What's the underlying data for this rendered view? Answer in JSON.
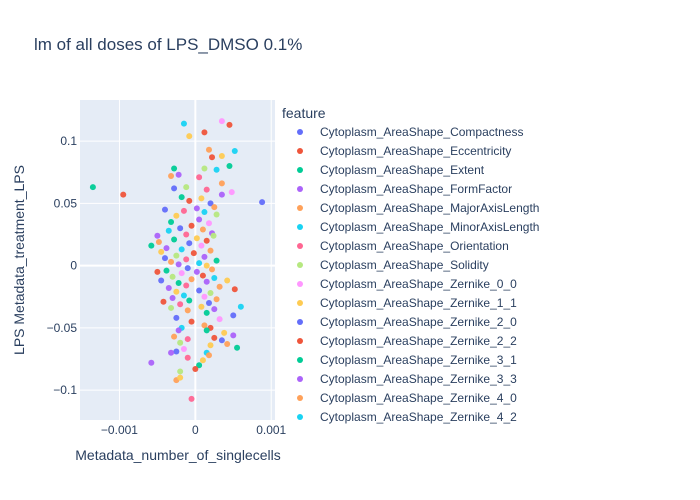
{
  "chart_data": {
    "type": "scatter",
    "title": "lm of all doses of LPS_DMSO 0.1%",
    "xlabel": "Metadata_number_of_singlecells",
    "ylabel": "LPS Metadata_treatment_LPS",
    "xlim": [
      -0.00152,
      0.00105
    ],
    "ylim": [
      -0.124,
      0.133
    ],
    "x_ticks": [
      {
        "value": -0.001,
        "label": "−0.001"
      },
      {
        "value": 0,
        "label": "0"
      },
      {
        "value": 0.001,
        "label": "0.001"
      }
    ],
    "y_ticks": [
      {
        "value": -0.1,
        "label": "−0.1"
      },
      {
        "value": -0.05,
        "label": "−0.05"
      },
      {
        "value": 0,
        "label": "0"
      },
      {
        "value": 0.05,
        "label": "0.05"
      },
      {
        "value": 0.1,
        "label": "0.1"
      }
    ],
    "grid": true,
    "legend": {
      "title": "feature",
      "placement": "right",
      "entries": [
        {
          "name": "Cytoplasm_AreaShape_Compactness",
          "color": "#636efa"
        },
        {
          "name": "Cytoplasm_AreaShape_Eccentricity",
          "color": "#EF553B"
        },
        {
          "name": "Cytoplasm_AreaShape_Extent",
          "color": "#00cc96"
        },
        {
          "name": "Cytoplasm_AreaShape_FormFactor",
          "color": "#ab63fa"
        },
        {
          "name": "Cytoplasm_AreaShape_MajorAxisLength",
          "color": "#FFA15A"
        },
        {
          "name": "Cytoplasm_AreaShape_MinorAxisLength",
          "color": "#19d3f3"
        },
        {
          "name": "Cytoplasm_AreaShape_Orientation",
          "color": "#FF6692"
        },
        {
          "name": "Cytoplasm_AreaShape_Solidity",
          "color": "#B6E880"
        },
        {
          "name": "Cytoplasm_AreaShape_Zernike_0_0",
          "color": "#FF97FF"
        },
        {
          "name": "Cytoplasm_AreaShape_Zernike_1_1",
          "color": "#FECB52"
        },
        {
          "name": "Cytoplasm_AreaShape_Zernike_2_0",
          "color": "#636efa"
        },
        {
          "name": "Cytoplasm_AreaShape_Zernike_2_2",
          "color": "#EF553B"
        },
        {
          "name": "Cytoplasm_AreaShape_Zernike_3_1",
          "color": "#00cc96"
        },
        {
          "name": "Cytoplasm_AreaShape_Zernike_3_3",
          "color": "#ab63fa"
        },
        {
          "name": "Cytoplasm_AreaShape_Zernike_4_0",
          "color": "#FFA15A"
        },
        {
          "name": "Cytoplasm_AreaShape_Zernike_4_2",
          "color": "#19d3f3"
        }
      ]
    },
    "points": [
      {
        "x": -0.00135,
        "y": 0.063,
        "c": "#00cc96"
      },
      {
        "x": -0.00095,
        "y": 0.057,
        "c": "#EF553B"
      },
      {
        "x": 0.00088,
        "y": 0.051,
        "c": "#636efa"
      },
      {
        "x": -0.00015,
        "y": 0.114,
        "c": "#19d3f3"
      },
      {
        "x": -8e-05,
        "y": 0.104,
        "c": "#FECB52"
      },
      {
        "x": 0.00012,
        "y": 0.107,
        "c": "#EF553B"
      },
      {
        "x": 0.00035,
        "y": 0.116,
        "c": "#FF97FF"
      },
      {
        "x": 0.00045,
        "y": 0.113,
        "c": "#EF553B"
      },
      {
        "x": 0.00018,
        "y": 0.093,
        "c": "#FFA15A"
      },
      {
        "x": 0.00052,
        "y": 0.092,
        "c": "#19d3f3"
      },
      {
        "x": 0.00035,
        "y": 0.088,
        "c": "#FECB52"
      },
      {
        "x": 0.00022,
        "y": 0.087,
        "c": "#EF553B"
      },
      {
        "x": 0.00045,
        "y": 0.08,
        "c": "#00cc96"
      },
      {
        "x": -0.00028,
        "y": 0.078,
        "c": "#00cc96"
      },
      {
        "x": 0.00012,
        "y": 0.078,
        "c": "#B6E880"
      },
      {
        "x": 0.00028,
        "y": 0.077,
        "c": "#19d3f3"
      },
      {
        "x": -0.00032,
        "y": 0.072,
        "c": "#FFA15A"
      },
      {
        "x": -0.00022,
        "y": 0.073,
        "c": "#ab63fa"
      },
      {
        "x": 5e-05,
        "y": 0.071,
        "c": "#FF6692"
      },
      {
        "x": 0.00035,
        "y": 0.066,
        "c": "#FFA15A"
      },
      {
        "x": -0.00012,
        "y": 0.063,
        "c": "#B6E880"
      },
      {
        "x": -0.00028,
        "y": 0.062,
        "c": "#636efa"
      },
      {
        "x": 0.00015,
        "y": 0.061,
        "c": "#FF6692"
      },
      {
        "x": 0.00048,
        "y": 0.059,
        "c": "#FF97FF"
      },
      {
        "x": 0.00035,
        "y": 0.057,
        "c": "#ab63fa"
      },
      {
        "x": -0.00018,
        "y": 0.055,
        "c": "#00cc96"
      },
      {
        "x": 8e-05,
        "y": 0.054,
        "c": "#FECB52"
      },
      {
        "x": -8e-05,
        "y": 0.052,
        "c": "#EF553B"
      },
      {
        "x": 0.0002,
        "y": 0.05,
        "c": "#636efa"
      },
      {
        "x": -0.0004,
        "y": 0.045,
        "c": "#636efa"
      },
      {
        "x": 0.00025,
        "y": 0.047,
        "c": "#FFA15A"
      },
      {
        "x": 2e-05,
        "y": 0.046,
        "c": "#ab63fa"
      },
      {
        "x": -0.00015,
        "y": 0.044,
        "c": "#FF6692"
      },
      {
        "x": 0.00012,
        "y": 0.043,
        "c": "#19d3f3"
      },
      {
        "x": -0.00025,
        "y": 0.04,
        "c": "#FECB52"
      },
      {
        "x": 0.00028,
        "y": 0.041,
        "c": "#B6E880"
      },
      {
        "x": 5e-05,
        "y": 0.037,
        "c": "#ab63fa"
      },
      {
        "x": -0.00032,
        "y": 0.035,
        "c": "#00cc96"
      },
      {
        "x": 0.00018,
        "y": 0.034,
        "c": "#FF97FF"
      },
      {
        "x": -5e-05,
        "y": 0.032,
        "c": "#EF553B"
      },
      {
        "x": -0.0002,
        "y": 0.03,
        "c": "#636efa"
      },
      {
        "x": 0.0001,
        "y": 0.029,
        "c": "#FFA15A"
      },
      {
        "x": -0.00035,
        "y": 0.028,
        "c": "#19d3f3"
      },
      {
        "x": 0.00022,
        "y": 0.026,
        "c": "#ab63fa"
      },
      {
        "x": -0.00012,
        "y": 0.025,
        "c": "#FF6692"
      },
      {
        "x": -0.0005,
        "y": 0.024,
        "c": "#ab63fa"
      },
      {
        "x": 0.00024,
        "y": 0.024,
        "c": "#B6E880"
      },
      {
        "x": 2e-05,
        "y": 0.022,
        "c": "#FECB52"
      },
      {
        "x": -0.00028,
        "y": 0.021,
        "c": "#00cc96"
      },
      {
        "x": 0.00015,
        "y": 0.02,
        "c": "#EF553B"
      },
      {
        "x": -0.00048,
        "y": 0.019,
        "c": "#FFA15A"
      },
      {
        "x": -8e-05,
        "y": 0.018,
        "c": "#636efa"
      },
      {
        "x": -0.00058,
        "y": 0.016,
        "c": "#00cc96"
      },
      {
        "x": 8e-05,
        "y": 0.016,
        "c": "#FF97FF"
      },
      {
        "x": -0.00038,
        "y": 0.014,
        "c": "#ab63fa"
      },
      {
        "x": -0.00018,
        "y": 0.013,
        "c": "#19d3f3"
      },
      {
        "x": 0.0002,
        "y": 0.012,
        "c": "#FFA15A"
      },
      {
        "x": -0.00045,
        "y": 0.011,
        "c": "#FECB52"
      },
      {
        "x": -2e-05,
        "y": 0.01,
        "c": "#EF553B"
      },
      {
        "x": -0.00025,
        "y": 0.008,
        "c": "#B6E880"
      },
      {
        "x": 0.00012,
        "y": 0.007,
        "c": "#ab63fa"
      },
      {
        "x": -0.0004,
        "y": 0.006,
        "c": "#636efa"
      },
      {
        "x": -0.00012,
        "y": 0.005,
        "c": "#FF6692"
      },
      {
        "x": 0.00028,
        "y": 0.004,
        "c": "#00cc96"
      },
      {
        "x": -0.00032,
        "y": 0.003,
        "c": "#FFA15A"
      },
      {
        "x": 5e-05,
        "y": 0.002,
        "c": "#19d3f3"
      },
      {
        "x": -0.00022,
        "y": 0.001,
        "c": "#ab63fa"
      },
      {
        "x": 0.00015,
        "y": 0.0,
        "c": "#FECB52"
      },
      {
        "x": -0.0005,
        "y": -0.005,
        "c": "#EF553B"
      },
      {
        "x": -0.0001,
        "y": -0.002,
        "c": "#636efa"
      },
      {
        "x": 0.00022,
        "y": -0.003,
        "c": "#FFA15A"
      },
      {
        "x": -0.00038,
        "y": -0.004,
        "c": "#00cc96"
      },
      {
        "x": 2e-05,
        "y": -0.005,
        "c": "#ab63fa"
      },
      {
        "x": -0.00018,
        "y": -0.006,
        "c": "#FF97FF"
      },
      {
        "x": 0.0001,
        "y": -0.008,
        "c": "#EF553B"
      },
      {
        "x": -0.0003,
        "y": -0.009,
        "c": "#B6E880"
      },
      {
        "x": 0.00025,
        "y": -0.01,
        "c": "#19d3f3"
      },
      {
        "x": -5e-05,
        "y": -0.011,
        "c": "#FFA15A"
      },
      {
        "x": -0.00045,
        "y": -0.012,
        "c": "#636efa"
      },
      {
        "x": 0.00015,
        "y": -0.013,
        "c": "#ab63fa"
      },
      {
        "x": -0.00022,
        "y": -0.014,
        "c": "#00cc96"
      },
      {
        "x": 0.00042,
        "y": -0.012,
        "c": "#FECB52"
      },
      {
        "x": -0.00012,
        "y": -0.016,
        "c": "#FF6692"
      },
      {
        "x": 0.00032,
        "y": -0.017,
        "c": "#FFA15A"
      },
      {
        "x": -0.00035,
        "y": -0.018,
        "c": "#ab63fa"
      },
      {
        "x": 0.00052,
        "y": -0.019,
        "c": "#EF553B"
      },
      {
        "x": 5e-05,
        "y": -0.02,
        "c": "#636efa"
      },
      {
        "x": -0.00025,
        "y": -0.021,
        "c": "#FECB52"
      },
      {
        "x": 0.0002,
        "y": -0.022,
        "c": "#B6E880"
      },
      {
        "x": -0.00015,
        "y": -0.024,
        "c": "#19d3f3"
      },
      {
        "x": 0.00012,
        "y": -0.025,
        "c": "#FF97FF"
      },
      {
        "x": -0.0003,
        "y": -0.026,
        "c": "#ab63fa"
      },
      {
        "x": 0.00028,
        "y": -0.027,
        "c": "#FFA15A"
      },
      {
        "x": -8e-05,
        "y": -0.028,
        "c": "#00cc96"
      },
      {
        "x": -0.00042,
        "y": -0.029,
        "c": "#EF553B"
      },
      {
        "x": 0.00018,
        "y": -0.03,
        "c": "#636efa"
      },
      {
        "x": 0.0006,
        "y": -0.033,
        "c": "#19d3f3"
      },
      {
        "x": -0.0002,
        "y": -0.031,
        "c": "#FF6692"
      },
      {
        "x": 8e-05,
        "y": -0.033,
        "c": "#FECB52"
      },
      {
        "x": -0.00032,
        "y": -0.034,
        "c": "#B6E880"
      },
      {
        "x": 0.00025,
        "y": -0.035,
        "c": "#ab63fa"
      },
      {
        "x": -0.0001,
        "y": -0.036,
        "c": "#FFA15A"
      },
      {
        "x": 0.00015,
        "y": -0.038,
        "c": "#00cc96"
      },
      {
        "x": 0.0005,
        "y": -0.04,
        "c": "#636efa"
      },
      {
        "x": -0.00025,
        "y": -0.042,
        "c": "#636efa"
      },
      {
        "x": 0.00032,
        "y": -0.043,
        "c": "#FF97FF"
      },
      {
        "x": -5e-05,
        "y": -0.045,
        "c": "#EF553B"
      },
      {
        "x": 0.00012,
        "y": -0.048,
        "c": "#FFA15A"
      },
      {
        "x": 0.0002,
        "y": -0.05,
        "c": "#EF553B"
      },
      {
        "x": -0.00018,
        "y": -0.05,
        "c": "#19d3f3"
      },
      {
        "x": -0.00022,
        "y": -0.052,
        "c": "#ab63fa"
      },
      {
        "x": 0.00015,
        "y": -0.052,
        "c": "#00cc96"
      },
      {
        "x": 0.00038,
        "y": -0.054,
        "c": "#FECB52"
      },
      {
        "x": 0.0005,
        "y": -0.056,
        "c": "#ab63fa"
      },
      {
        "x": -0.00028,
        "y": -0.057,
        "c": "#FFA15A"
      },
      {
        "x": 0.00025,
        "y": -0.058,
        "c": "#EF553B"
      },
      {
        "x": -0.0001,
        "y": -0.059,
        "c": "#FF6692"
      },
      {
        "x": 0.00035,
        "y": -0.06,
        "c": "#636efa"
      },
      {
        "x": -0.0002,
        "y": -0.062,
        "c": "#B6E880"
      },
      {
        "x": 0.00042,
        "y": -0.063,
        "c": "#FFA15A"
      },
      {
        "x": 0.0002,
        "y": -0.064,
        "c": "#FECB52"
      },
      {
        "x": 0.00055,
        "y": -0.066,
        "c": "#00cc96"
      },
      {
        "x": -0.00015,
        "y": -0.067,
        "c": "#FF97FF"
      },
      {
        "x": -0.00025,
        "y": -0.069,
        "c": "#636efa"
      },
      {
        "x": 0.00015,
        "y": -0.07,
        "c": "#19d3f3"
      },
      {
        "x": -0.00032,
        "y": -0.07,
        "c": "#ab63fa"
      },
      {
        "x": 0.00018,
        "y": -0.072,
        "c": "#FFA15A"
      },
      {
        "x": -0.0001,
        "y": -0.074,
        "c": "#FF6692"
      },
      {
        "x": -0.00058,
        "y": -0.078,
        "c": "#ab63fa"
      },
      {
        "x": 0.0001,
        "y": -0.076,
        "c": "#FECB52"
      },
      {
        "x": 5e-05,
        "y": -0.08,
        "c": "#00cc96"
      },
      {
        "x": -0.0002,
        "y": -0.085,
        "c": "#B6E880"
      },
      {
        "x": 0.0,
        "y": -0.083,
        "c": "#EF553B"
      },
      {
        "x": -0.00025,
        "y": -0.092,
        "c": "#FFA15A"
      },
      {
        "x": -0.0002,
        "y": -0.09,
        "c": "#FECB52"
      },
      {
        "x": -5e-05,
        "y": -0.107,
        "c": "#FF6692"
      }
    ]
  }
}
